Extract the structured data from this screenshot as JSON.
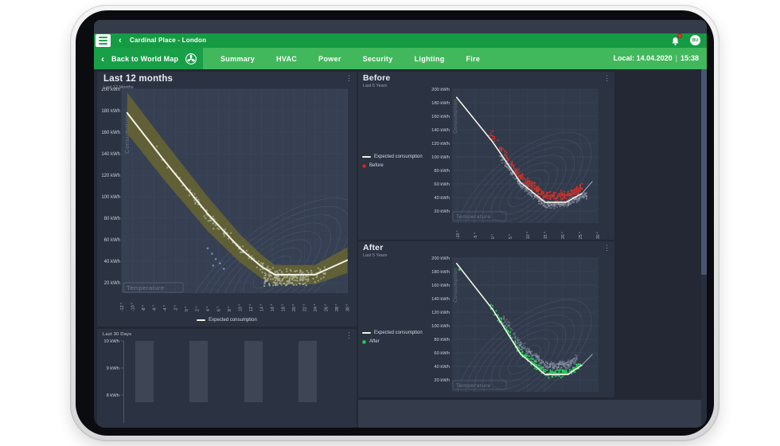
{
  "header": {
    "title": "Cardinal Place - London",
    "avatar_initials": "BU"
  },
  "nav": {
    "back_label": "Back to World Map",
    "tabs": [
      "Summary",
      "HVAC",
      "Power",
      "Security",
      "Lighting",
      "Fire"
    ],
    "local_date": "Local: 14.04.2020",
    "local_time": "15:38"
  },
  "icons": {
    "back_chevron": "‹",
    "kebab": "⋮",
    "separator": "|"
  },
  "colors": {
    "topbar_green": "#169b45",
    "navbar_green": "#41b85c",
    "nav_section_green": "#189f48",
    "panel_bg": "#2b3241",
    "dashboard_bg": "#232834",
    "expected_line": "#F4F1E4",
    "band_olive": "#6A6730",
    "before_red": "#D2312A",
    "after_green": "#2BD05E",
    "historic_gray": "#97A0B1"
  },
  "chart_data": [
    {
      "id": "last-12-months",
      "type": "scatter",
      "title": "Last 12 months",
      "subtitle": "Last 12 Months",
      "xlabel": "Temperature",
      "ylabel": "Consumption",
      "x_unit": "°",
      "y_unit": "kWh",
      "x_ticks": [
        -12,
        -10,
        -8,
        -6,
        -4,
        -2,
        0,
        2,
        4,
        6,
        8,
        10,
        12,
        14,
        16,
        18,
        20,
        22,
        24,
        26,
        28,
        30
      ],
      "y_ticks": [
        200,
        180,
        160,
        140,
        120,
        100,
        80,
        60,
        40,
        20
      ],
      "legend": [
        {
          "label": "Expected consumption",
          "marker": "line",
          "color": "#F4F1E4"
        }
      ],
      "expected_line": [
        [
          -11,
          178
        ],
        [
          -4,
          133
        ],
        [
          4,
          84
        ],
        [
          10,
          52
        ],
        [
          14,
          35
        ],
        [
          16.5,
          27.5
        ],
        [
          24,
          27.5
        ],
        [
          30,
          41
        ]
      ],
      "band": {
        "color": "#6A6730",
        "opacity": 0.82,
        "halfwidths": [
          19,
          18,
          16,
          13,
          11,
          9,
          9,
          12
        ]
      },
      "series": [
        {
          "name": "consumption-readings",
          "color": "#A9AD92",
          "n": 210,
          "t_min": -6,
          "t_max": 26,
          "skew": 0.6,
          "bias": -1,
          "spread": 8,
          "r": 1.2,
          "opacity": 0.75,
          "seed": 7
        },
        {
          "name": "dense-cluster",
          "color": "#A9AD92",
          "n": 95,
          "uniform": true,
          "t_min": 14.5,
          "t_max": 22.5,
          "k_min": 17,
          "k_max": 27,
          "r": 1.2,
          "opacity": 0.8,
          "seed": 8
        },
        {
          "name": "outliers",
          "color": "#7F97C4",
          "r": 1.3,
          "opacity": 0.85,
          "points": [
            [
              4,
              52
            ],
            [
              4.8,
              47
            ],
            [
              5.5,
              42
            ],
            [
              6.3,
              38
            ],
            [
              5,
              36
            ],
            [
              7,
              33
            ]
          ]
        }
      ]
    },
    {
      "id": "last-30-days",
      "type": "bar",
      "title": "Last 30 Days",
      "y_unit": "kWh",
      "y_ticks": [
        10,
        9,
        8
      ],
      "values": [
        10,
        10,
        10,
        10
      ],
      "bar_color": "#3E4655"
    },
    {
      "id": "before",
      "type": "scatter",
      "title": "Before",
      "subtitle": "Last 5 Years",
      "xlabel": "Temperature",
      "ylabel": "Consumption",
      "x_unit": "°",
      "y_unit": "kWh",
      "x_ticks": [
        -10,
        -5,
        0,
        5,
        10,
        15,
        20,
        25,
        30
      ],
      "y_ticks": [
        200,
        180,
        160,
        140,
        120,
        100,
        80,
        60,
        40,
        20
      ],
      "legend": [
        {
          "label": "Expected consumption",
          "marker": "line",
          "color": "#F4F1E4"
        },
        {
          "label": "Before",
          "marker": "circle",
          "color": "#D2312A"
        }
      ],
      "expected_line": [
        [
          -10.3,
          188
        ],
        [
          0,
          122
        ],
        [
          8,
          62
        ],
        [
          15,
          33
        ],
        [
          21,
          33
        ],
        [
          25.5,
          46
        ]
      ],
      "extension_line": [
        [
          25.5,
          46
        ],
        [
          28.5,
          64
        ]
      ],
      "series": [
        {
          "name": "historic",
          "color": "#97A0B1",
          "n": 400,
          "t_min": 2,
          "t_max": 27,
          "skew": 0.8,
          "bias": -3,
          "spread": 8,
          "quant": 0.4,
          "r": 1,
          "opacity": 0.5,
          "seed": 12
        },
        {
          "name": "before",
          "color": "#D2312A",
          "n": 300,
          "t_min": -1,
          "t_max": 25.5,
          "skew": 0.72,
          "bias": 9,
          "spread": 10,
          "quant": 0.5,
          "r": 1.05,
          "opacity": 0.95,
          "seed": 11
        }
      ]
    },
    {
      "id": "after",
      "type": "scatter",
      "title": "After",
      "subtitle": "Last 5 Years",
      "xlabel": "Temperature",
      "ylabel": "Consumption",
      "x_unit": "°",
      "y_unit": "kWh",
      "x_ticks": [
        -10,
        -5,
        0,
        5,
        10,
        15,
        20,
        25,
        30
      ],
      "y_ticks": [
        200,
        180,
        160,
        140,
        120,
        100,
        80,
        60,
        40,
        20
      ],
      "legend": [
        {
          "label": "Expected consumption",
          "marker": "line",
          "color": "#F4F1E4"
        },
        {
          "label": "After",
          "marker": "circle",
          "color": "#2BD05E"
        }
      ],
      "expected_line": [
        [
          -10.3,
          192
        ],
        [
          0,
          124
        ],
        [
          8,
          58
        ],
        [
          15,
          28
        ],
        [
          21.5,
          28
        ],
        [
          25.5,
          42
        ]
      ],
      "extension_line": [
        [
          25.5,
          42
        ],
        [
          28.5,
          58
        ]
      ],
      "series": [
        {
          "name": "historic",
          "color": "#97A0B1",
          "n": 320,
          "t_min": 3,
          "t_max": 24,
          "skew": 0.75,
          "bias": 14,
          "spread": 9,
          "quant": 0.4,
          "r": 1,
          "opacity": 0.45,
          "seed": 22
        },
        {
          "name": "after",
          "color": "#2BD05E",
          "n": 300,
          "t_min": -1,
          "t_max": 25,
          "skew": 0.72,
          "bias": 2,
          "spread": 8,
          "quant": 0.5,
          "r": 1.05,
          "opacity": 0.95,
          "seed": 21
        },
        {
          "name": "after-outlier",
          "color": "#2BD05E",
          "r": 1.4,
          "opacity": 0.95,
          "points": [
            [
              -9.5,
              183
            ]
          ]
        }
      ]
    }
  ]
}
